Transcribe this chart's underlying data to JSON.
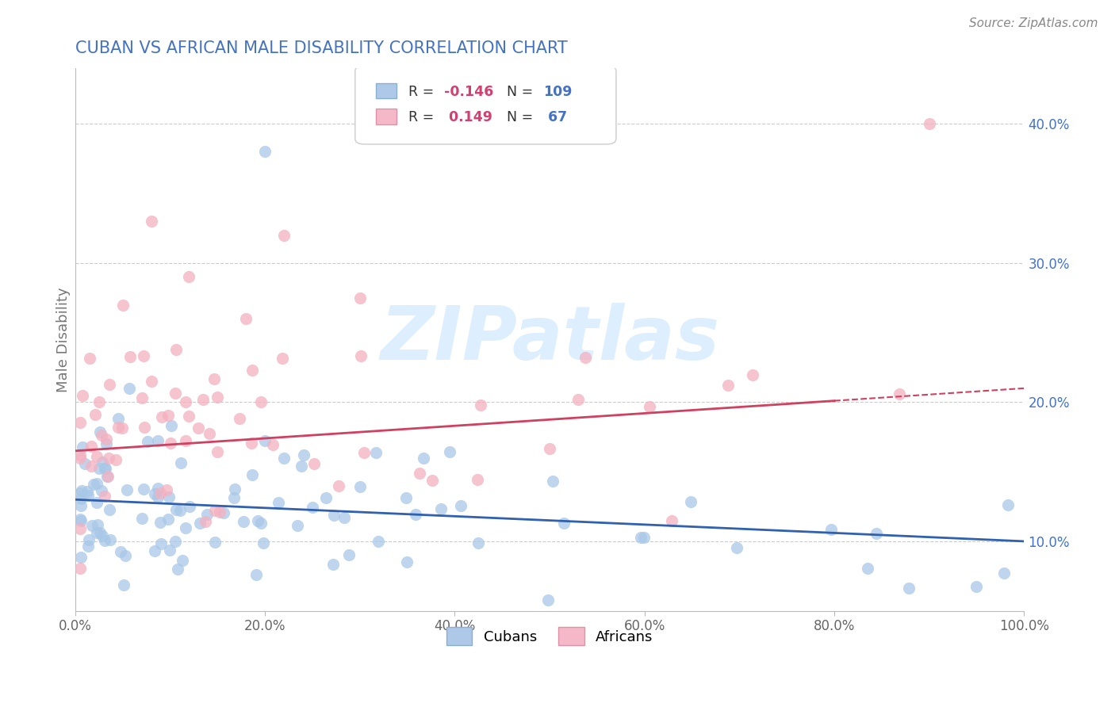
{
  "title": "CUBAN VS AFRICAN MALE DISABILITY CORRELATION CHART",
  "source": "Source: ZipAtlas.com",
  "ylabel": "Male Disability",
  "xlim": [
    0,
    100
  ],
  "ylim": [
    5,
    44
  ],
  "xtick_labels": [
    "0.0%",
    "20.0%",
    "40.0%",
    "60.0%",
    "80.0%",
    "100.0%"
  ],
  "xtick_vals": [
    0,
    20,
    40,
    60,
    80,
    100
  ],
  "ytick_labels": [
    "10.0%",
    "20.0%",
    "30.0%",
    "40.0%"
  ],
  "ytick_vals": [
    10,
    20,
    30,
    40
  ],
  "blue_scatter_color": "#a8c8e8",
  "pink_scatter_color": "#f4b0c0",
  "blue_line_color": "#3060b0",
  "pink_line_color": "#d04060",
  "title_color": "#4472c4",
  "watermark": "ZIPatlas",
  "background_color": "#ffffff",
  "grid_color": "#cccccc",
  "blue_line_start": 13.0,
  "blue_line_end": 10.0,
  "pink_line_start": 16.5,
  "pink_line_end": 21.0,
  "pink_dash_end": 22.5,
  "cubans_R": -0.146,
  "cubans_N": 109,
  "africans_R": 0.149,
  "africans_N": 67
}
